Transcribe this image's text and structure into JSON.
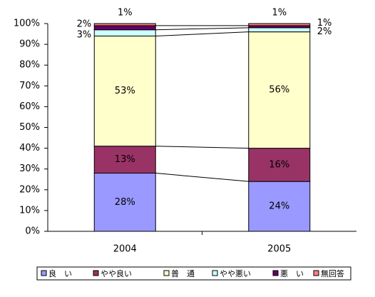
{
  "chart_data": {
    "type": "stacked-bar",
    "categories": [
      "2004",
      "2005"
    ],
    "ylim": [
      0,
      100
    ],
    "yticks": [
      {
        "value": 0,
        "label": "0%"
      },
      {
        "value": 10,
        "label": "10%"
      },
      {
        "value": 20,
        "label": "20%"
      },
      {
        "value": 30,
        "label": "30%"
      },
      {
        "value": 40,
        "label": "40%"
      },
      {
        "value": 50,
        "label": "50%"
      },
      {
        "value": 60,
        "label": "60%"
      },
      {
        "value": 70,
        "label": "70%"
      },
      {
        "value": 80,
        "label": "80%"
      },
      {
        "value": 90,
        "label": "90%"
      },
      {
        "value": 100,
        "label": "100%"
      }
    ],
    "series": [
      {
        "name": "良　い",
        "color": "#9999ff",
        "values": [
          28,
          24
        ],
        "value_labels": [
          "28%",
          "24%"
        ]
      },
      {
        "name": "やや良い",
        "color": "#993366",
        "values": [
          13,
          16
        ],
        "value_labels": [
          "13%",
          "16%"
        ]
      },
      {
        "name": "普　通",
        "color": "#ffffcc",
        "values": [
          53,
          56
        ],
        "value_labels": [
          "53%",
          "56%"
        ]
      },
      {
        "name": "やや悪い",
        "color": "#ccffff",
        "values": [
          3,
          2
        ],
        "value_labels": [
          "3%",
          "2%"
        ]
      },
      {
        "name": "悪　い",
        "color": "#660066",
        "values": [
          2,
          1
        ],
        "value_labels": [
          "2%",
          "1%"
        ]
      },
      {
        "name": "無回答",
        "color": "#ff8080",
        "values": [
          1,
          1
        ],
        "value_labels": [
          "1%",
          "1%"
        ]
      }
    ],
    "legend": "bottom"
  }
}
